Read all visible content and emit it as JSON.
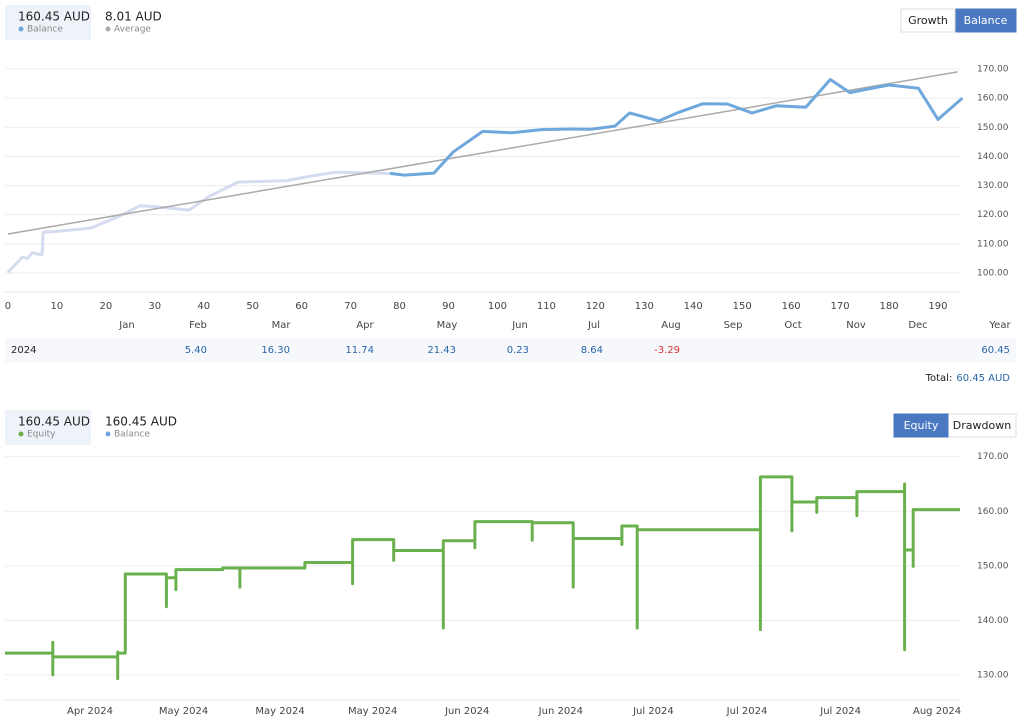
{
  "chart_data": [
    {
      "type": "line",
      "buttons": [
        {
          "label": "Growth",
          "active": false
        },
        {
          "label": "Balance",
          "active": true
        }
      ],
      "xlim": [
        -0.6,
        194.5
      ],
      "ylim": [
        93.5,
        174.8
      ],
      "grid": true,
      "xticks": [
        0,
        10,
        20,
        30,
        40,
        50,
        60,
        70,
        80,
        90,
        100,
        110,
        120,
        130,
        140,
        150,
        160,
        170,
        180,
        190
      ],
      "yticks": [
        {
          "value": 100,
          "label": "100.00"
        },
        {
          "value": 110,
          "label": "110.00"
        },
        {
          "value": 120,
          "label": "120.00"
        },
        {
          "value": 130,
          "label": "130.00"
        },
        {
          "value": 140,
          "label": "140.00"
        },
        {
          "value": 150,
          "label": "150.00"
        },
        {
          "value": 160,
          "label": "160.00"
        },
        {
          "value": 170,
          "label": "170.00"
        }
      ],
      "series": [
        {
          "name": "Balance",
          "summary": "160.45 AUD",
          "color": "#6fa8dc",
          "x": [
            78,
            81,
            87,
            91,
            97,
            103,
            109,
            115,
            119,
            124,
            127,
            133,
            137,
            142,
            147,
            152,
            157,
            163,
            168,
            172,
            176,
            180,
            186,
            190,
            195
          ],
          "values": [
            134.2,
            133.6,
            134.3,
            141.6,
            148.6,
            148.1,
            149.2,
            149.4,
            149.3,
            150.4,
            154.9,
            152.2,
            155.1,
            158.1,
            158.0,
            154.9,
            157.4,
            156.9,
            166.4,
            161.9,
            163.2,
            164.5,
            163.4,
            152.7,
            160.0
          ]
        },
        {
          "name": "Average",
          "summary": "8.01 AUD",
          "color": "#aaaaaa",
          "x": [
            0,
            194
          ],
          "values": [
            113.4,
            169.0
          ]
        },
        {
          "color": "#d6dcf0",
          "x": [
            0,
            3,
            4,
            5,
            6,
            7,
            7.2,
            10,
            15,
            17,
            23,
            27,
            30,
            37,
            41,
            47,
            57,
            62,
            67,
            72,
            78
          ],
          "values": [
            100.3,
            105.5,
            105.0,
            107.0,
            106.5,
            106.4,
            114.0,
            114.3,
            115.1,
            115.5,
            119.7,
            123.1,
            122.8,
            121.6,
            126.2,
            131.2,
            131.7,
            133.3,
            134.6,
            134.4,
            134.2
          ]
        }
      ]
    },
    {
      "type": "line",
      "buttons": [
        {
          "label": "Equity",
          "active": true
        },
        {
          "label": "Drawdown",
          "active": false
        }
      ],
      "xlim": [
        0,
        100
      ],
      "ylim": [
        125.4,
        171.6
      ],
      "grid": true,
      "xticks": [
        {
          "value": 8.9,
          "label": "Apr 2024"
        },
        {
          "value": 18.7,
          "label": "May 2024"
        },
        {
          "value": 28.8,
          "label": "May 2024"
        },
        {
          "value": 38.5,
          "label": "May 2024"
        },
        {
          "value": 48.4,
          "label": "Jun 2024"
        },
        {
          "value": 58.2,
          "label": "Jun 2024"
        },
        {
          "value": 67.9,
          "label": "Jul 2024"
        },
        {
          "value": 77.7,
          "label": "Jul 2024"
        },
        {
          "value": 87.5,
          "label": "Jul 2024"
        },
        {
          "value": 97.6,
          "label": "Aug 2024"
        }
      ],
      "yticks": [
        {
          "value": 130,
          "label": "130.00"
        },
        {
          "value": 140,
          "label": "140.00"
        },
        {
          "value": 150,
          "label": "150.00"
        },
        {
          "value": 160,
          "label": "160.00"
        },
        {
          "value": 170,
          "label": "170.00"
        }
      ],
      "series": [
        {
          "name": "Equity",
          "summary": "160.45 AUD",
          "color": "#6ab04c",
          "x": [
            0,
            5.0,
            5.0,
            5.0,
            5.0,
            11.8,
            11.8,
            11.8,
            11.8,
            12.6,
            12.6,
            16.9,
            16.9,
            16.9,
            17.9,
            17.9,
            17.9,
            22.8,
            22.8,
            24.6,
            24.6,
            24.6,
            31.4,
            31.4,
            36.4,
            36.4,
            36.4,
            40.7,
            40.7,
            40.7,
            45.9,
            45.9,
            45.9,
            49.2,
            49.2,
            49.2,
            55.2,
            55.2,
            55.2,
            59.5,
            59.5,
            59.5,
            64.6,
            64.6,
            64.6,
            66.2,
            66.2,
            66.2,
            79.1,
            79.1,
            79.1,
            82.4,
            82.4,
            82.4,
            85.0,
            85.0,
            85.0,
            89.2,
            89.2,
            89.2,
            94.2,
            94.2,
            94.2,
            94.2,
            95.1,
            95.1,
            95.1,
            100
          ],
          "values": [
            134.0,
            134.0,
            136.0,
            130.0,
            133.3,
            133.3,
            134.2,
            129.3,
            134.0,
            134.0,
            148.5,
            148.5,
            142.5,
            147.8,
            147.8,
            145.6,
            149.3,
            149.3,
            149.6,
            149.6,
            146.1,
            149.6,
            149.6,
            150.6,
            150.6,
            146.7,
            154.8,
            154.8,
            151.0,
            152.8,
            152.8,
            138.6,
            154.6,
            154.6,
            153.3,
            158.1,
            158.1,
            154.7,
            157.9,
            157.9,
            146.1,
            155.0,
            155.0,
            153.9,
            157.3,
            157.3,
            138.6,
            156.6,
            156.6,
            138.3,
            166.3,
            166.3,
            156.4,
            161.7,
            161.7,
            159.8,
            162.5,
            162.5,
            159.2,
            163.6,
            163.6,
            165.0,
            134.6,
            152.9,
            152.9,
            149.9,
            160.3,
            160.3
          ]
        },
        {
          "name": "Balance",
          "summary": "160.45 AUD",
          "color": "#6fa8dc",
          "x": [],
          "values": []
        }
      ]
    }
  ],
  "table": {
    "columns": [
      "Jan",
      "Feb",
      "Mar",
      "Apr",
      "May",
      "Jun",
      "Jul",
      "Aug",
      "Sep",
      "Oct",
      "Nov",
      "Dec",
      "Year"
    ],
    "rows": [
      {
        "label": "2024",
        "cells": [
          null,
          "5.40",
          "16.30",
          "11.74",
          "21.43",
          "0.23",
          "8.64",
          "-3.29",
          null,
          null,
          null,
          null,
          "60.45"
        ]
      }
    ],
    "total": {
      "label": "Total:",
      "value": "60.45 AUD"
    }
  }
}
